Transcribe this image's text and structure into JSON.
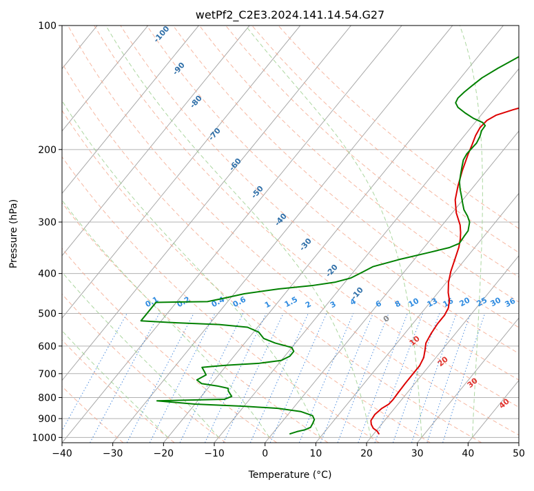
{
  "chart_data": {
    "type": "line",
    "title": "wetPf2_C2E3.2024.141.14.54.G27",
    "xlabel": "Temperature (°C)",
    "ylabel": "Pressure (hPa)",
    "xlim": [
      -40,
      50
    ],
    "ylim": [
      1030,
      100
    ],
    "y_scale": "log",
    "x_ticks": [
      -40,
      -30,
      -20,
      -10,
      0,
      10,
      20,
      30,
      40,
      50
    ],
    "y_ticks": [
      100,
      200,
      300,
      400,
      500,
      600,
      700,
      800,
      900,
      1000
    ],
    "grid": true,
    "series": [
      {
        "key": "temperature",
        "color": "#dd0000",
        "points": [
          [
            21.0,
            980
          ],
          [
            20.2,
            965
          ],
          [
            19.0,
            950
          ],
          [
            18.0,
            930
          ],
          [
            17.3,
            910
          ],
          [
            17.1,
            880
          ],
          [
            17.5,
            850
          ],
          [
            18.2,
            830
          ],
          [
            18.3,
            810
          ],
          [
            18.2,
            780
          ],
          [
            18.1,
            740
          ],
          [
            18.1,
            700
          ],
          [
            18.1,
            670
          ],
          [
            17.6,
            640
          ],
          [
            16.7,
            615
          ],
          [
            15.7,
            590
          ],
          [
            15.2,
            560
          ],
          [
            14.9,
            530
          ],
          [
            14.9,
            505
          ],
          [
            14.5,
            485
          ],
          [
            13.5,
            465
          ],
          [
            12.0,
            445
          ],
          [
            10.4,
            420
          ],
          [
            9.1,
            395
          ],
          [
            8.0,
            370
          ],
          [
            6.8,
            345
          ],
          [
            5.8,
            330
          ],
          [
            4.8,
            318
          ],
          [
            3.5,
            305
          ],
          [
            0.8,
            285
          ],
          [
            -1.5,
            265
          ],
          [
            -3.2,
            245
          ],
          [
            -4.8,
            225
          ],
          [
            -6.3,
            205
          ],
          [
            -7.0,
            195
          ],
          [
            -7.8,
            185
          ],
          [
            -8.2,
            177
          ],
          [
            -8.0,
            170
          ],
          [
            -7.0,
            165
          ],
          [
            -4.5,
            160
          ],
          [
            -2.0,
            156
          ],
          [
            1.0,
            152
          ],
          [
            3.5,
            148
          ],
          [
            5.5,
            143
          ],
          [
            7.5,
            137
          ],
          [
            9.5,
            131
          ],
          [
            11.0,
            125
          ],
          [
            12.5,
            119
          ],
          [
            14.5,
            113
          ],
          [
            16.0,
            108
          ],
          [
            17.3,
            104
          ],
          [
            18.0,
            101
          ],
          [
            18.3,
            100
          ]
        ]
      },
      {
        "key": "dewpoint",
        "color": "#008000",
        "points": [
          [
            3.5,
            980
          ],
          [
            4.5,
            968
          ],
          [
            5.8,
            958
          ],
          [
            6.5,
            945
          ],
          [
            6.3,
            925
          ],
          [
            6.0,
            905
          ],
          [
            5.0,
            885
          ],
          [
            2.0,
            865
          ],
          [
            -3.0,
            850
          ],
          [
            -10.0,
            840
          ],
          [
            -20.0,
            830
          ],
          [
            -28.0,
            815
          ],
          [
            -15.0,
            808
          ],
          [
            -14.0,
            795
          ],
          [
            -15.5,
            772
          ],
          [
            -16.0,
            760
          ],
          [
            -18.5,
            750
          ],
          [
            -22.0,
            740
          ],
          [
            -23.5,
            725
          ],
          [
            -22.5,
            705
          ],
          [
            -23.5,
            690
          ],
          [
            -24.5,
            676
          ],
          [
            -22.5,
            672
          ],
          [
            -20.0,
            668
          ],
          [
            -14.0,
            661
          ],
          [
            -10.0,
            650
          ],
          [
            -9.0,
            635
          ],
          [
            -9.0,
            618
          ],
          [
            -10.0,
            605
          ],
          [
            -14.0,
            590
          ],
          [
            -17.0,
            575
          ],
          [
            -19.0,
            555
          ],
          [
            -22.0,
            540
          ],
          [
            -28.0,
            532
          ],
          [
            -38.0,
            526
          ],
          [
            -44.0,
            521
          ],
          [
            -44.0,
            470
          ],
          [
            -34.0,
            468
          ],
          [
            -31.5,
            460
          ],
          [
            -28.0,
            448
          ],
          [
            -22.0,
            436
          ],
          [
            -16.0,
            428
          ],
          [
            -12.0,
            420
          ],
          [
            -9.5,
            410
          ],
          [
            -8.3,
            398
          ],
          [
            -7.0,
            385
          ],
          [
            -3.0,
            370
          ],
          [
            2.0,
            355
          ],
          [
            5.0,
            346
          ],
          [
            6.3,
            338
          ],
          [
            6.1,
            325
          ],
          [
            6.0,
            315
          ],
          [
            4.9,
            300
          ],
          [
            3.5,
            290
          ],
          [
            1.8,
            280
          ],
          [
            0.5,
            270
          ],
          [
            -0.8,
            260
          ],
          [
            -2.2,
            250
          ],
          [
            -3.5,
            240
          ],
          [
            -4.5,
            230
          ],
          [
            -5.5,
            220
          ],
          [
            -6.3,
            212
          ],
          [
            -6.6,
            205
          ],
          [
            -6.5,
            198
          ],
          [
            -6.4,
            193
          ],
          [
            -6.8,
            186
          ],
          [
            -7.4,
            180
          ],
          [
            -7.5,
            175
          ],
          [
            -8.5,
            172
          ],
          [
            -11.0,
            168
          ],
          [
            -13.5,
            163
          ],
          [
            -15.8,
            158
          ],
          [
            -17.0,
            154
          ],
          [
            -17.3,
            150
          ],
          [
            -17.0,
            145
          ],
          [
            -16.5,
            140
          ],
          [
            -15.8,
            134
          ],
          [
            -14.2,
            127
          ],
          [
            -12.5,
            121
          ],
          [
            -11.0,
            116
          ],
          [
            -9.0,
            111
          ],
          [
            -6.5,
            106
          ],
          [
            -4.0,
            101
          ],
          [
            -3.5,
            100
          ]
        ]
      }
    ],
    "dry_adiabat_labels": [
      "-100",
      "-90",
      "-80",
      "-70",
      "-60",
      "-50",
      "-40",
      "-30",
      "-20",
      "-10"
    ],
    "mixing_ratio_labels": [
      "0.1",
      "0.2",
      "0.4",
      "0.6",
      "1",
      "1.5",
      "2",
      "3",
      "4",
      "6",
      "8",
      "10",
      "13",
      "16",
      "20",
      "25",
      "30",
      "36"
    ],
    "moist_adiabat_labels": [
      "0",
      "10",
      "20",
      "30",
      "40"
    ]
  }
}
